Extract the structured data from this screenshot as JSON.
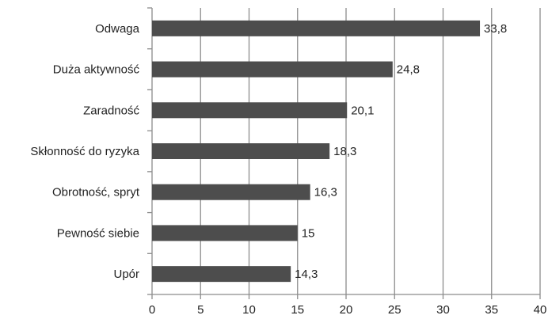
{
  "chart_data": {
    "type": "bar",
    "orientation": "horizontal",
    "categories": [
      "Odwaga",
      "Duża aktywność",
      "Zaradność",
      "Skłonność do ryzyka",
      "Obrotność, spryt",
      "Pewność siebie",
      "Upór"
    ],
    "values": [
      33.8,
      24.8,
      20.1,
      18.3,
      16.3,
      15,
      14.3
    ],
    "value_labels": [
      "33,8",
      "24,8",
      "20,1",
      "18,3",
      "16,3",
      "15",
      "14,3"
    ],
    "x_ticks": [
      0,
      5,
      10,
      15,
      20,
      25,
      30,
      35,
      40
    ],
    "x_tick_labels": [
      "0",
      "5",
      "10",
      "15",
      "20",
      "25",
      "30",
      "35",
      "40"
    ],
    "xlim": [
      0,
      40
    ],
    "grid": "vertical",
    "legend": "none",
    "title": "",
    "xlabel": "",
    "ylabel": "",
    "colors": {
      "bar": "#4d4d4d",
      "grid": "#8c8c8c",
      "axis": "#8c8c8c",
      "text": "#222222"
    }
  }
}
